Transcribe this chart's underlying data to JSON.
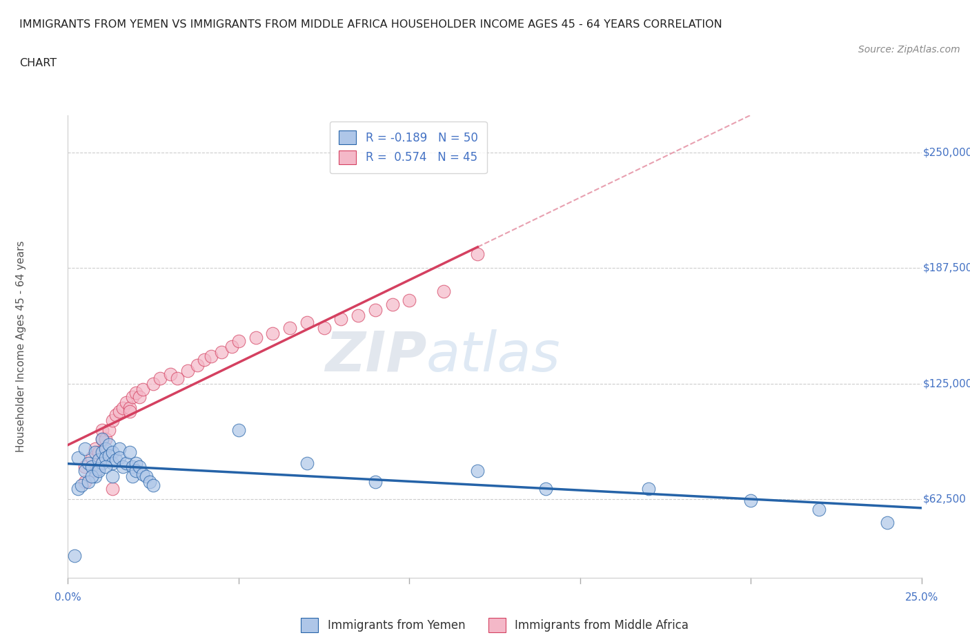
{
  "title_line1": "IMMIGRANTS FROM YEMEN VS IMMIGRANTS FROM MIDDLE AFRICA HOUSEHOLDER INCOME AGES 45 - 64 YEARS CORRELATION",
  "title_line2": "CHART",
  "source": "Source: ZipAtlas.com",
  "ylabel": "Householder Income Ages 45 - 64 years",
  "legend1_label": "R = -0.189   N = 50",
  "legend2_label": "R =  0.574   N = 45",
  "legend1_color": "#aec6e8",
  "legend2_color": "#f4b8c8",
  "watermark": "ZIPatlas",
  "ytick_labels": [
    "$62,500",
    "$125,000",
    "$187,500",
    "$250,000"
  ],
  "ytick_values": [
    62500,
    125000,
    187500,
    250000
  ],
  "xlim": [
    0.0,
    0.25
  ],
  "ylim": [
    20000,
    270000
  ],
  "trend1_color": "#2563a8",
  "trend2_color": "#d44060",
  "scatter1_color": "#aec6e8",
  "scatter2_color": "#f4b8c8",
  "yemen_x": [
    0.003,
    0.005,
    0.005,
    0.006,
    0.007,
    0.008,
    0.008,
    0.009,
    0.009,
    0.01,
    0.01,
    0.01,
    0.011,
    0.011,
    0.012,
    0.012,
    0.013,
    0.013,
    0.014,
    0.015,
    0.015,
    0.016,
    0.017,
    0.018,
    0.019,
    0.019,
    0.02,
    0.02,
    0.021,
    0.022,
    0.023,
    0.024,
    0.025,
    0.003,
    0.004,
    0.006,
    0.007,
    0.009,
    0.011,
    0.013,
    0.05,
    0.07,
    0.09,
    0.12,
    0.14,
    0.17,
    0.2,
    0.22,
    0.24,
    0.002
  ],
  "yemen_y": [
    85000,
    90000,
    78000,
    82000,
    80000,
    88000,
    75000,
    84000,
    79000,
    95000,
    88000,
    82000,
    90000,
    85000,
    92000,
    86000,
    88000,
    82000,
    84000,
    90000,
    85000,
    80000,
    82000,
    88000,
    80000,
    75000,
    82000,
    78000,
    80000,
    76000,
    75000,
    72000,
    70000,
    68000,
    70000,
    72000,
    75000,
    78000,
    80000,
    75000,
    100000,
    82000,
    72000,
    78000,
    68000,
    68000,
    62000,
    57000,
    50000,
    32000
  ],
  "africa_x": [
    0.005,
    0.007,
    0.008,
    0.009,
    0.01,
    0.01,
    0.011,
    0.012,
    0.013,
    0.014,
    0.015,
    0.016,
    0.017,
    0.018,
    0.019,
    0.02,
    0.021,
    0.022,
    0.025,
    0.027,
    0.03,
    0.032,
    0.035,
    0.038,
    0.04,
    0.042,
    0.045,
    0.048,
    0.05,
    0.055,
    0.06,
    0.065,
    0.07,
    0.075,
    0.08,
    0.085,
    0.09,
    0.095,
    0.1,
    0.11,
    0.12,
    0.005,
    0.008,
    0.013,
    0.018
  ],
  "africa_y": [
    80000,
    85000,
    90000,
    88000,
    95000,
    100000,
    95000,
    100000,
    105000,
    108000,
    110000,
    112000,
    115000,
    112000,
    118000,
    120000,
    118000,
    122000,
    125000,
    128000,
    130000,
    128000,
    132000,
    135000,
    138000,
    140000,
    142000,
    145000,
    148000,
    150000,
    152000,
    155000,
    158000,
    155000,
    160000,
    162000,
    165000,
    168000,
    170000,
    175000,
    195000,
    72000,
    78000,
    68000,
    110000
  ]
}
